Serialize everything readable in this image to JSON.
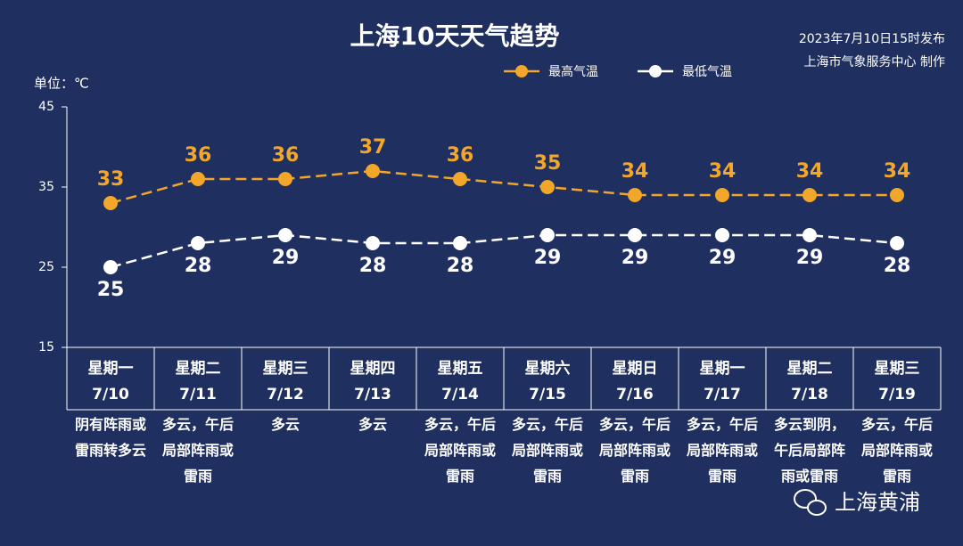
{
  "chart_data": {
    "type": "line",
    "title": "上海10天天气趋势",
    "issued": "2023年7月10日15时发布",
    "producer": "上海市气象服务中心 制作",
    "unit": "单位：℃",
    "watermark": "上海黄浦",
    "weekdays": [
      "星期一",
      "星期二",
      "星期三",
      "星期四",
      "星期五",
      "星期六",
      "星期日",
      "星期一",
      "星期二",
      "星期三"
    ],
    "categories": [
      "7/10",
      "7/11",
      "7/12",
      "7/13",
      "7/14",
      "7/15",
      "7/16",
      "7/17",
      "7/18",
      "7/19"
    ],
    "descriptions": [
      "阴有阵雨或雷雨转多云",
      "多云，午后局部阵雨或雷雨",
      "多云",
      "多云",
      "多云，午后局部阵雨或雷雨",
      "多云，午后局部阵雨或雷雨",
      "多云，午后局部阵雨或雷雨",
      "多云，午后局部阵雨或雷雨",
      "多云到阴，午后局部阵雨或雷雨",
      "多云，午后局部阵雨或雷雨"
    ],
    "series": [
      {
        "name": "最高气温",
        "color": "#f2a62a",
        "values": [
          33,
          36,
          36,
          37,
          36,
          35,
          34,
          34,
          34,
          34
        ]
      },
      {
        "name": "最低气温",
        "color": "#ffffff",
        "values": [
          25,
          28,
          29,
          28,
          28,
          29,
          29,
          29,
          29,
          28
        ]
      }
    ],
    "ylim": [
      15,
      45
    ],
    "yticks": [
      15,
      25,
      35,
      45
    ]
  }
}
